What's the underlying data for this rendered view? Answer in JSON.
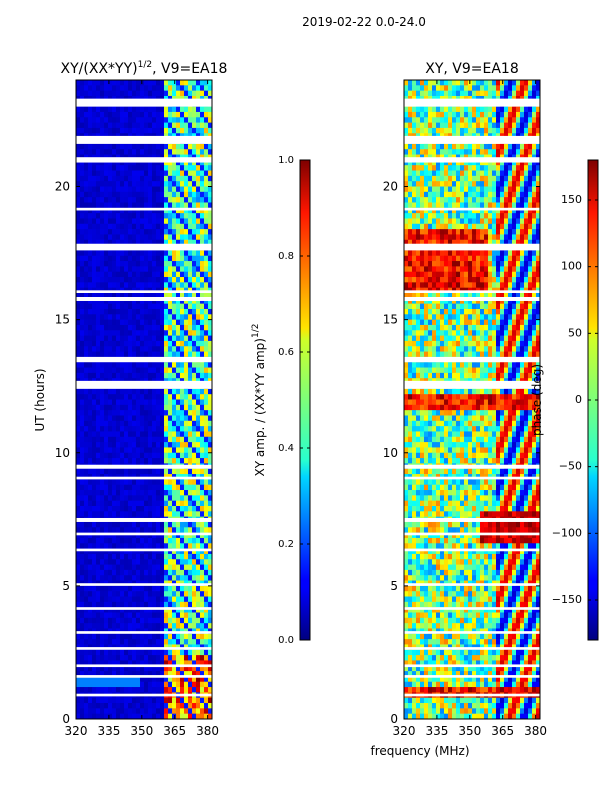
{
  "figure": {
    "suptitle": "2019-02-22 0.0-24.0",
    "shared_xlabel": "frequency (MHz)"
  },
  "chart_data": [
    {
      "type": "heatmap",
      "title_main": "XY/(XX*YY)",
      "title_exp": "1/2",
      "title_suffix": ", V9=EA18",
      "xlabel": "frequency (MHz)",
      "ylabel": "UT (hours)",
      "xlim": [
        320,
        382
      ],
      "ylim": [
        0,
        24
      ],
      "xticks": [
        320,
        335,
        350,
        365,
        380
      ],
      "yticks": [
        0,
        5,
        10,
        15,
        20
      ],
      "colorbar": {
        "label_main": "XY amp. / (XX*YY amp)",
        "label_exp": "1/2",
        "range": [
          0.0,
          1.0
        ],
        "ticks": [
          "0.0",
          "0.2",
          "0.4",
          "0.6",
          "0.8",
          "1.0"
        ]
      }
    },
    {
      "type": "heatmap",
      "title": "XY, V9=EA18",
      "xlabel": "frequency (MHz)",
      "ylabel": "",
      "xlim": [
        320,
        382
      ],
      "ylim": [
        0,
        24
      ],
      "xticks": [
        320,
        335,
        350,
        365,
        380
      ],
      "yticks": [
        0,
        5,
        10,
        15,
        20
      ],
      "colorbar": {
        "label": "phase (deg)",
        "range": [
          -180,
          180
        ],
        "ticks": [
          "−150",
          "−100",
          "−50",
          "0",
          "50",
          "100",
          "150"
        ]
      }
    }
  ]
}
